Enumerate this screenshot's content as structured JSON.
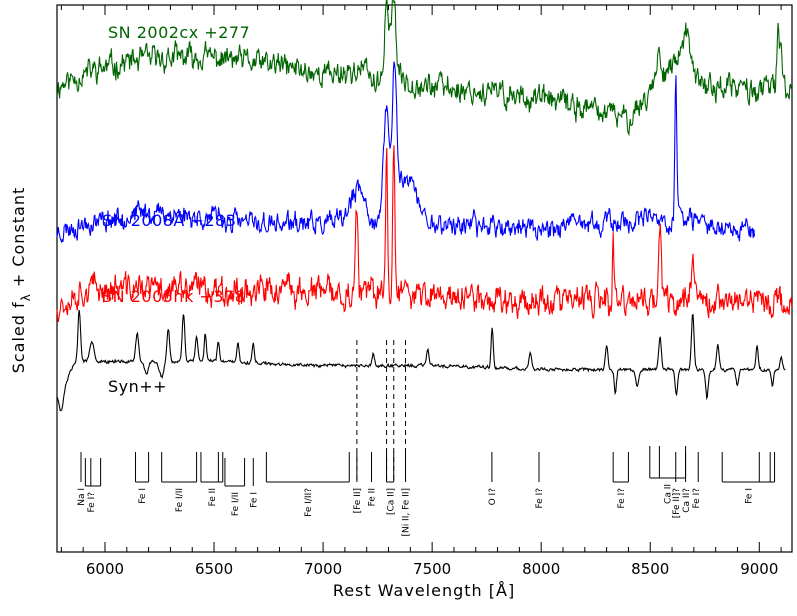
{
  "chart_data": {
    "type": "line",
    "title": "",
    "xlabel": "Rest Wavelength [Å]",
    "ylabel": "Scaled f",
    "ylabel_subscript": "λ",
    "ylabel_suffix": " + Constant",
    "xlim": [
      5780,
      9150
    ],
    "ylim": [
      -0.35,
      1.0
    ],
    "xticks": [
      6000,
      6500,
      7000,
      7500,
      8000,
      8500,
      9000
    ],
    "series": [
      {
        "name": "SN 2002cx  +277",
        "color": "#006400",
        "seed": 11,
        "noise": 0.03,
        "x_start": 5780,
        "x_end": 9150,
        "baseline": [
          [
            5780,
            0.8
          ],
          [
            5900,
            0.83
          ],
          [
            6100,
            0.86
          ],
          [
            6300,
            0.87
          ],
          [
            6500,
            0.87
          ],
          [
            6800,
            0.85
          ],
          [
            7000,
            0.83
          ],
          [
            7200,
            0.84
          ],
          [
            7500,
            0.8
          ],
          [
            8000,
            0.77
          ],
          [
            8400,
            0.72
          ],
          [
            8550,
            0.82
          ],
          [
            8620,
            0.86
          ],
          [
            8750,
            0.8
          ],
          [
            9000,
            0.79
          ],
          [
            9150,
            0.8
          ]
        ],
        "features": [
          {
            "c": 7291,
            "a": 0.19,
            "w": 10
          },
          {
            "c": 7323,
            "a": 0.2,
            "w": 10
          },
          {
            "c": 7250,
            "a": -0.04,
            "w": 20
          },
          {
            "c": 8540,
            "a": 0.06,
            "w": 15
          },
          {
            "c": 8662,
            "a": 0.1,
            "w": 15
          },
          {
            "c": 9085,
            "a": 0.14,
            "w": 5
          },
          {
            "c": 9100,
            "a": 0.1,
            "w": 5
          }
        ]
      },
      {
        "name": "SN 2008A  +283",
        "color": "#0000ff",
        "seed": 23,
        "noise": 0.025,
        "x_start": 5780,
        "x_end": 8980,
        "baseline": [
          [
            5780,
            0.44
          ],
          [
            5900,
            0.46
          ],
          [
            6000,
            0.47
          ],
          [
            6200,
            0.49
          ],
          [
            6400,
            0.48
          ],
          [
            6700,
            0.46
          ],
          [
            7000,
            0.46
          ],
          [
            7500,
            0.46
          ],
          [
            8000,
            0.45
          ],
          [
            8500,
            0.47
          ],
          [
            8980,
            0.45
          ]
        ],
        "features": [
          {
            "c": 7160,
            "a": 0.08,
            "w": 35
          },
          {
            "c": 7290,
            "a": 0.28,
            "w": 12
          },
          {
            "c": 7327,
            "a": 0.34,
            "w": 10
          },
          {
            "c": 7380,
            "a": 0.12,
            "w": 45
          },
          {
            "c": 8617,
            "a": 0.33,
            "w": 4
          },
          {
            "c": 8580,
            "a": -0.03,
            "w": 10
          },
          {
            "c": 8630,
            "a": 0.05,
            "w": 12
          },
          {
            "c": 7780,
            "a": 0.04,
            "w": 5
          }
        ]
      },
      {
        "name": "SN 2005hk  +378",
        "color": "#ff0000",
        "seed": 37,
        "noise": 0.035,
        "x_start": 5780,
        "x_end": 9150,
        "baseline": [
          [
            5780,
            0.26
          ],
          [
            5900,
            0.3
          ],
          [
            6000,
            0.3
          ],
          [
            6500,
            0.3
          ],
          [
            7000,
            0.29
          ],
          [
            7500,
            0.28
          ],
          [
            8000,
            0.27
          ],
          [
            8500,
            0.27
          ],
          [
            9000,
            0.27
          ],
          [
            9150,
            0.26
          ]
        ],
        "features": [
          {
            "c": 7155,
            "a": 0.2,
            "w": 6
          },
          {
            "c": 7291,
            "a": 0.34,
            "w": 5
          },
          {
            "c": 7324,
            "a": 0.38,
            "w": 5
          },
          {
            "c": 7380,
            "a": 0.06,
            "w": 12
          },
          {
            "c": 8330,
            "a": 0.15,
            "w": 3
          },
          {
            "c": 8310,
            "a": -0.08,
            "w": 2
          },
          {
            "c": 8545,
            "a": 0.18,
            "w": 6
          },
          {
            "c": 8700,
            "a": 0.1,
            "w": 12
          }
        ]
      },
      {
        "name": "Syn++",
        "color": "#000000",
        "seed": 5,
        "noise": 0.004,
        "x_start": 5780,
        "x_end": 9120,
        "baseline": [
          [
            5780,
            0.05
          ],
          [
            5830,
            0.08
          ],
          [
            5860,
            0.12
          ],
          [
            6000,
            0.12
          ],
          [
            6500,
            0.12
          ],
          [
            7000,
            0.11
          ],
          [
            7500,
            0.11
          ],
          [
            8000,
            0.1
          ],
          [
            8500,
            0.1
          ],
          [
            9000,
            0.1
          ],
          [
            9120,
            0.1
          ]
        ],
        "features": [
          {
            "c": 5800,
            "a": -0.06,
            "w": 12
          },
          {
            "c": 5882,
            "a": 0.13,
            "w": 6
          },
          {
            "c": 5940,
            "a": 0.05,
            "w": 10
          },
          {
            "c": 6148,
            "a": 0.07,
            "w": 7
          },
          {
            "c": 6190,
            "a": -0.03,
            "w": 8
          },
          {
            "c": 6260,
            "a": -0.04,
            "w": 10
          },
          {
            "c": 6290,
            "a": 0.08,
            "w": 6
          },
          {
            "c": 6360,
            "a": 0.12,
            "w": 6
          },
          {
            "c": 6420,
            "a": 0.06,
            "w": 6
          },
          {
            "c": 6460,
            "a": 0.07,
            "w": 5
          },
          {
            "c": 6520,
            "a": 0.05,
            "w": 5
          },
          {
            "c": 6610,
            "a": 0.05,
            "w": 5
          },
          {
            "c": 6680,
            "a": 0.05,
            "w": 5
          },
          {
            "c": 7230,
            "a": 0.03,
            "w": 5
          },
          {
            "c": 7480,
            "a": 0.04,
            "w": 6
          },
          {
            "c": 7775,
            "a": 0.1,
            "w": 5
          },
          {
            "c": 7950,
            "a": 0.04,
            "w": 6
          },
          {
            "c": 8300,
            "a": 0.06,
            "w": 6
          },
          {
            "c": 8340,
            "a": -0.06,
            "w": 5
          },
          {
            "c": 8440,
            "a": -0.04,
            "w": 7
          },
          {
            "c": 8545,
            "a": 0.08,
            "w": 6
          },
          {
            "c": 8620,
            "a": -0.06,
            "w": 6
          },
          {
            "c": 8695,
            "a": 0.14,
            "w": 6
          },
          {
            "c": 8760,
            "a": -0.07,
            "w": 6
          },
          {
            "c": 8810,
            "a": 0.06,
            "w": 6
          },
          {
            "c": 8900,
            "a": -0.04,
            "w": 6
          },
          {
            "c": 8990,
            "a": 0.06,
            "w": 5
          },
          {
            "c": 9060,
            "a": -0.04,
            "w": 5
          },
          {
            "c": 9100,
            "a": 0.03,
            "w": 5
          }
        ]
      }
    ],
    "dashed_lines": [
      {
        "x": 7155,
        "label": "[Fe II]"
      },
      {
        "x": 7291,
        "label": "[Ca II]"
      },
      {
        "x": 7324,
        "label": "[Ca II]"
      },
      {
        "x": 7378,
        "label": "[Ni II, Fe II]"
      }
    ],
    "line_ids": [
      {
        "label": "Na I",
        "ticks": [
          5890
        ],
        "bracket": null,
        "text_x": 5890,
        "depth": 0
      },
      {
        "label": "Fe I?",
        "ticks": [
          5910,
          5935,
          5980
        ],
        "bracket": [
          5910,
          5980
        ],
        "text_x": 5935,
        "depth": 1
      },
      {
        "label": "Fe I",
        "ticks": [
          6140,
          6200
        ],
        "bracket": [
          6140,
          6200
        ],
        "text_x": 6170,
        "depth": 0
      },
      {
        "label": "Fe I/II",
        "ticks": [
          6260,
          6420
        ],
        "bracket": [
          6260,
          6420
        ],
        "text_x": 6340,
        "depth": 0
      },
      {
        "label": "Fe II",
        "ticks": [
          6440,
          6520,
          6540
        ],
        "bracket": [
          6440,
          6540
        ],
        "text_x": 6490,
        "depth": 0
      },
      {
        "label": "Fe I/II",
        "ticks": [
          6550,
          6640
        ],
        "bracket": [
          6550,
          6640
        ],
        "text_x": 6595,
        "depth": 1
      },
      {
        "label": "Fe I",
        "ticks": [
          6680
        ],
        "bracket": null,
        "text_x": 6680,
        "depth": 1
      },
      {
        "label": "Fe I/II?",
        "ticks": [
          6740,
          7120
        ],
        "bracket": [
          6740,
          7120
        ],
        "text_x": 6930,
        "depth": 0
      },
      {
        "label": "[Fe II]",
        "ticks": [
          7155
        ],
        "bracket": null,
        "text_x": 7155,
        "depth": 0
      },
      {
        "label": "Fe II",
        "ticks": [
          7222
        ],
        "bracket": null,
        "text_x": 7222,
        "depth": 0
      },
      {
        "label": "[Ca II]",
        "ticks": [
          7291,
          7324
        ],
        "bracket": [
          7291,
          7324
        ],
        "text_x": 7308,
        "depth": 0
      },
      {
        "label": "[Ni II, Fe II]",
        "ticks": [
          7378
        ],
        "bracket": null,
        "text_x": 7378,
        "depth": 0
      },
      {
        "label": "O I?",
        "ticks": [
          7774
        ],
        "bracket": null,
        "text_x": 7774,
        "depth": 0
      },
      {
        "label": "Fe I?",
        "ticks": [
          7990
        ],
        "bracket": null,
        "text_x": 7990,
        "depth": 0
      },
      {
        "label": "Fe I?",
        "ticks": [
          8330,
          8400
        ],
        "bracket": [
          8330,
          8400
        ],
        "text_x": 8365,
        "depth": 0
      },
      {
        "label": "Ca II",
        "ticks": [
          8498,
          8542,
          8662
        ],
        "bracket": [
          8498,
          8662
        ],
        "text_x": 8580,
        "depth": -1
      },
      {
        "label": "[Fe II]?",
        "ticks": [
          8617
        ],
        "bracket": null,
        "text_x": 8617,
        "depth": 0
      },
      {
        "label": "Ca II?",
        "ticks": [
          8662
        ],
        "bracket": null,
        "text_x": 8665,
        "depth": 0
      },
      {
        "label": "Fe I?",
        "ticks": [
          8720
        ],
        "bracket": null,
        "text_x": 8710,
        "depth": 0
      },
      {
        "label": "Fe I",
        "ticks": [
          8830,
          9000,
          9050,
          9070
        ],
        "bracket": [
          8830,
          9070
        ],
        "text_x": 8950,
        "depth": 0
      }
    ]
  }
}
